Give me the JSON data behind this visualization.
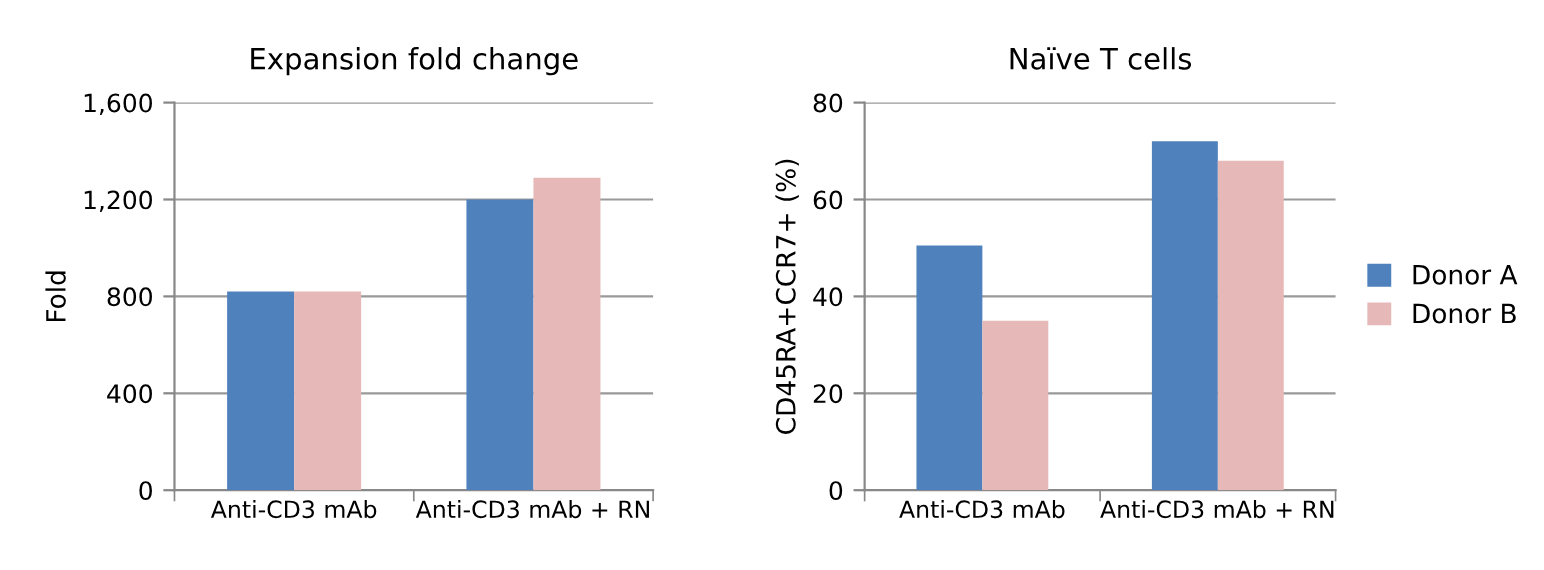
{
  "chart_data": [
    {
      "type": "bar",
      "title": "Expansion fold change",
      "ylabel": "Fold",
      "categories": [
        "Anti-CD3 mAb",
        "Anti-CD3 mAb + RN"
      ],
      "series": [
        {
          "color": "#4f81bd",
          "values": [
            820,
            1200
          ]
        },
        {
          "color": "#e6b9b8",
          "values": [
            820,
            1290
          ]
        }
      ],
      "ylim": [
        0,
        1600
      ],
      "yticks": [
        {
          "value": 0,
          "label": "0"
        },
        {
          "value": 400,
          "label": "400"
        },
        {
          "value": 800,
          "label": "800"
        },
        {
          "value": 1200,
          "label": "1,200"
        },
        {
          "value": 1600,
          "label": "1,600"
        }
      ],
      "grid": "y"
    },
    {
      "type": "bar",
      "title": "Naïve T cells",
      "ylabel": "CD45RA+CCR7+ (%)",
      "categories": [
        "Anti-CD3 mAb",
        "Anti-CD3 mAb + RN"
      ],
      "series": [
        {
          "name": "Donor A",
          "color": "#4f81bd",
          "values": [
            50.5,
            72
          ]
        },
        {
          "name": "Donor B",
          "color": "#e6b9b8",
          "values": [
            35,
            68
          ]
        }
      ],
      "ylim": [
        0,
        80
      ],
      "yticks": [
        0,
        20,
        40,
        60,
        80
      ],
      "grid": "y",
      "legend": "right"
    }
  ]
}
